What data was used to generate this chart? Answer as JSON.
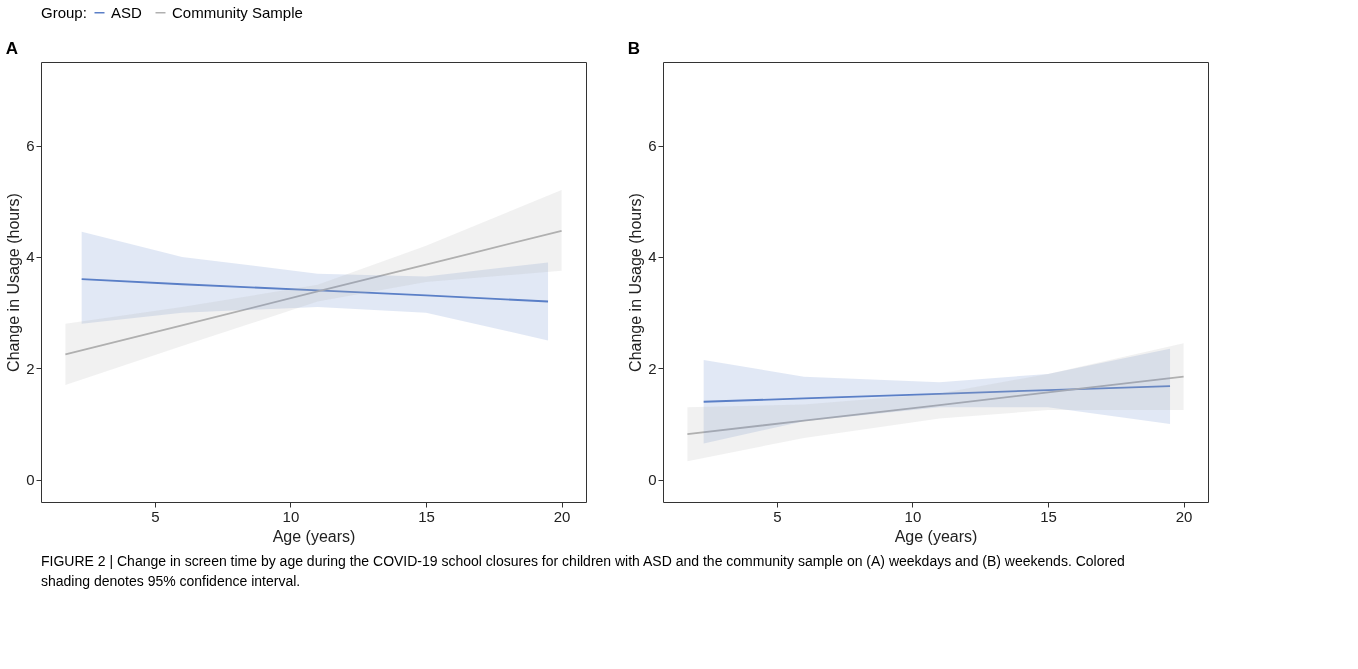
{
  "chart_data": [
    {
      "type": "line",
      "title": "A",
      "xlabel": "Age (years)",
      "ylabel": "Change in Usage (hours)",
      "legend_title": "Group:",
      "legend": "top",
      "grid": false,
      "xlim": [
        0.8,
        20.9
      ],
      "xticks": [
        5,
        10,
        15,
        20
      ],
      "ylim": [
        -0.4,
        7.5
      ],
      "yticks": [
        0,
        2,
        4,
        6
      ],
      "annotations": [
        "FIGURE 2 | Change in screen time by age during the COVID-19 school closures for children with ASD and the community sample on (A) weekdays and (B) weekends. Colored shading denotes 95% confidence interval."
      ],
      "series": [
        {
          "name": "ASD",
          "color": "#5b7fc7",
          "x": [
            2.3,
            6,
            11,
            15,
            19.5
          ],
          "values": [
            3.6,
            3.51,
            3.4,
            3.31,
            3.2
          ],
          "lower": [
            2.8,
            3.0,
            3.1,
            3.0,
            2.5
          ],
          "upper": [
            4.45,
            4.0,
            3.7,
            3.65,
            3.9
          ]
        },
        {
          "name": "Community Sample",
          "color": "#b0b0b0",
          "x": [
            1.7,
            6,
            11,
            15,
            20
          ],
          "values": [
            2.25,
            2.77,
            3.38,
            3.86,
            4.47
          ],
          "lower": [
            1.7,
            2.4,
            3.2,
            3.55,
            3.75
          ],
          "upper": [
            2.8,
            3.1,
            3.5,
            4.2,
            5.2
          ]
        }
      ]
    },
    {
      "type": "line",
      "title": "B",
      "xlabel": "Age (years)",
      "ylabel": "Change in Usage (hours)",
      "legend": false,
      "grid": false,
      "xlim": [
        0.8,
        20.9
      ],
      "xticks": [
        5,
        10,
        15,
        20
      ],
      "ylim": [
        -0.4,
        7.5
      ],
      "yticks": [
        0,
        2,
        4,
        6
      ],
      "series": [
        {
          "name": "ASD",
          "color": "#5b7fc7",
          "x": [
            2.3,
            6,
            11,
            15,
            19.5
          ],
          "values": [
            1.4,
            1.46,
            1.54,
            1.61,
            1.68
          ],
          "lower": [
            0.65,
            1.05,
            1.3,
            1.3,
            1.0
          ],
          "upper": [
            2.15,
            1.85,
            1.75,
            1.9,
            2.35
          ]
        },
        {
          "name": "Community Sample",
          "color": "#b0b0b0",
          "x": [
            1.7,
            6,
            11,
            15,
            20
          ],
          "values": [
            0.82,
            1.06,
            1.34,
            1.57,
            1.85
          ],
          "lower": [
            0.33,
            0.75,
            1.1,
            1.25,
            1.25
          ],
          "upper": [
            1.3,
            1.35,
            1.55,
            1.9,
            2.45
          ]
        }
      ]
    }
  ]
}
